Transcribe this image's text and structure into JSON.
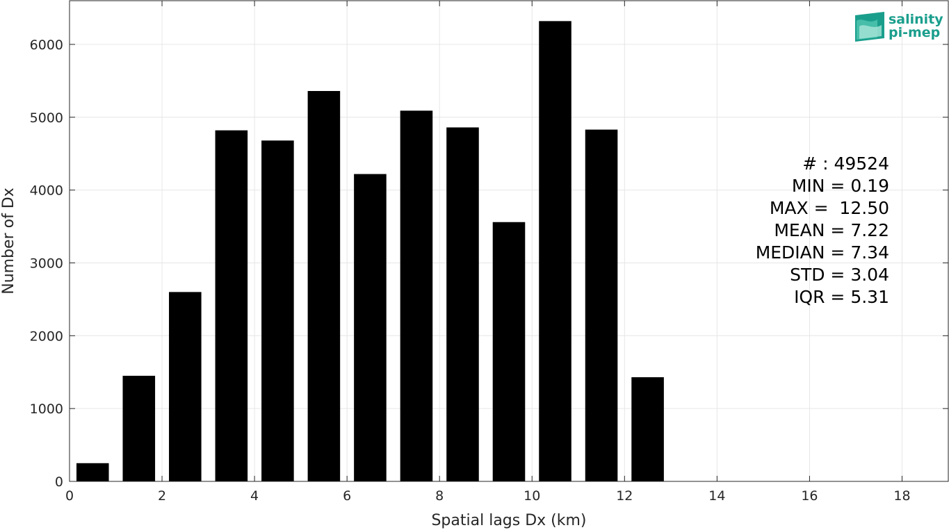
{
  "chart_data": {
    "type": "bar",
    "title": "",
    "xlabel": "Spatial lags Dx (km)",
    "ylabel": "Number of Dx",
    "xlim": [
      0,
      19
    ],
    "ylim": [
      0,
      6600
    ],
    "x_ticks": [
      0,
      2,
      4,
      6,
      8,
      10,
      12,
      14,
      16,
      18
    ],
    "y_ticks": [
      0,
      1000,
      2000,
      3000,
      4000,
      5000,
      6000
    ],
    "grid": true,
    "bar_width": 0.7,
    "bar_color": "#000000",
    "x": [
      0.5,
      1.5,
      2.5,
      3.5,
      4.5,
      5.5,
      6.5,
      7.5,
      8.5,
      9.5,
      10.5,
      11.5,
      12.5
    ],
    "values": [
      250,
      1450,
      2600,
      4820,
      4680,
      5360,
      4220,
      5090,
      4860,
      3560,
      6320,
      4830,
      1430
    ],
    "annotations": [
      "# : 49524",
      "MIN = 0.19",
      "MAX =  12.50",
      "MEAN = 7.22",
      "MEDIAN = 7.34",
      "STD = 3.04",
      "IQR = 5.31"
    ]
  },
  "logo": {
    "line1": "salinity",
    "line2": "pi-mep",
    "color": "#1a9e8c"
  }
}
